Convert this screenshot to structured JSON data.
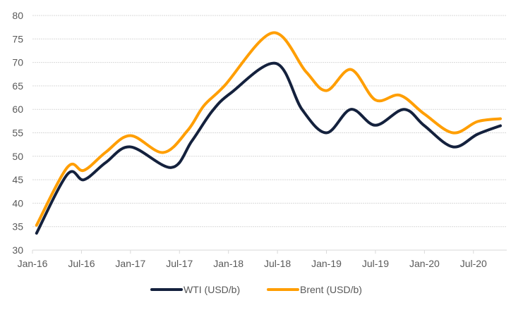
{
  "chart_data": {
    "type": "line",
    "title": "",
    "xlabel": "",
    "ylabel": "",
    "ylim": [
      30,
      80
    ],
    "yticks": [
      30,
      35,
      40,
      45,
      50,
      55,
      60,
      65,
      70,
      75,
      80
    ],
    "x_unit": "months since Jan-16",
    "xlim": [
      0,
      58
    ],
    "xticks": [
      {
        "m": 0,
        "label": "Jan-16"
      },
      {
        "m": 6,
        "label": "Jul-16"
      },
      {
        "m": 12,
        "label": "Jan-17"
      },
      {
        "m": 18,
        "label": "Jul-17"
      },
      {
        "m": 24,
        "label": "Jan-18"
      },
      {
        "m": 30,
        "label": "Jul-18"
      },
      {
        "m": 36,
        "label": "Jan-19"
      },
      {
        "m": 42,
        "label": "Jul-19"
      },
      {
        "m": 48,
        "label": "Jan-20"
      },
      {
        "m": 54,
        "label": "Jul-20"
      }
    ],
    "grid": true,
    "legend_position": "bottom",
    "series": [
      {
        "name": "WTI (USD/b)",
        "color": "#14213d",
        "x": [
          0.5,
          4.3,
          6.3,
          9,
          12,
          17,
          19.5,
          22,
          24.3,
          29.8,
          33,
          36,
          39,
          42,
          45.5,
          48,
          51.5,
          54.5,
          57.3
        ],
        "y": [
          33.6,
          46.2,
          45.0,
          48.7,
          52.0,
          47.6,
          53.2,
          59.6,
          63.5,
          69.8,
          60.0,
          55.0,
          60.0,
          56.6,
          60.0,
          56.5,
          52.0,
          54.7,
          56.5
        ]
      },
      {
        "name": "Brent (USD/b)",
        "color": "#ff9e00",
        "x": [
          0.5,
          4.3,
          6.3,
          9,
          12,
          16,
          19,
          21,
          23.5,
          29.4,
          33.5,
          36,
          39,
          42,
          45,
          48,
          51.5,
          54.5,
          57.3
        ],
        "y": [
          35.3,
          47.7,
          47.0,
          50.9,
          54.4,
          50.8,
          55.5,
          60.8,
          65.0,
          76.3,
          68.0,
          64.0,
          68.5,
          62.0,
          63.0,
          59.0,
          55.0,
          57.4,
          58.0
        ]
      }
    ]
  }
}
